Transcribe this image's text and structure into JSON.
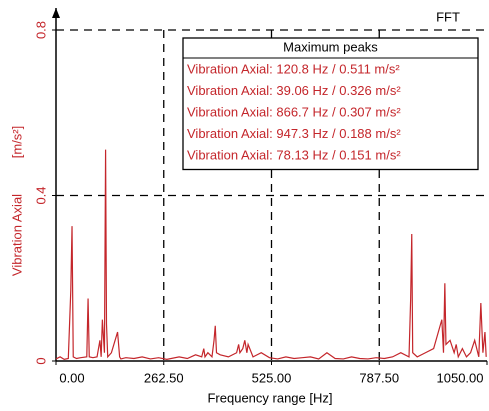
{
  "chart_data": {
    "type": "line",
    "title": "FFT",
    "x_label": "Frequency range [Hz]",
    "y_label": "Vibration Axial",
    "y_unit": "[m/s²]",
    "legend_title": "Maximum peaks",
    "legend_entries": [
      "Vibration Axial: 120.8 Hz / 0.511 m/s²",
      "Vibration Axial: 39.06 Hz / 0.326 m/s²",
      "Vibration Axial: 866.7 Hz / 0.307 m/s²",
      "Vibration Axial: 947.3 Hz / 0.188 m/s²",
      "Vibration Axial: 78.13 Hz / 0.151 m/s²"
    ],
    "color": "#c4262b",
    "grid": true,
    "xlim": [
      0,
      1050
    ],
    "ylim": [
      0,
      0.8
    ],
    "xticks": [
      {
        "value": 0,
        "label": "0.00"
      },
      {
        "value": 262.5,
        "label": "262.50"
      },
      {
        "value": 525,
        "label": "525.00"
      },
      {
        "value": 787.5,
        "label": "787.50"
      },
      {
        "value": 1050,
        "label": "1050.00"
      }
    ],
    "yticks": [
      0,
      0.4,
      0.8
    ],
    "x": [
      0,
      10,
      20,
      30,
      36,
      39.06,
      42,
      50,
      60,
      75,
      78.13,
      81,
      90,
      100,
      107,
      110,
      113,
      118,
      120.8,
      123,
      126,
      135,
      150,
      155,
      158,
      170,
      190,
      210,
      230,
      250,
      270,
      300,
      320,
      340,
      355,
      360,
      363,
      370,
      380,
      385,
      388,
      391,
      400,
      420,
      440,
      445,
      448,
      455,
      460,
      465,
      468,
      480,
      500,
      520,
      540,
      560,
      580,
      600,
      620,
      640,
      660,
      680,
      700,
      720,
      740,
      760,
      780,
      800,
      820,
      840,
      860,
      864,
      866.7,
      869,
      880,
      900,
      920,
      940,
      944,
      947.3,
      950,
      960,
      970,
      975,
      980,
      990,
      1000,
      1010,
      1020,
      1030,
      1035,
      1040,
      1045,
      1048
    ],
    "values": [
      0.005,
      0.01,
      0.004,
      0.006,
      0.17,
      0.326,
      0.01,
      0.006,
      0.008,
      0.01,
      0.151,
      0.01,
      0.008,
      0.01,
      0.05,
      0.01,
      0.1,
      0.02,
      0.511,
      0.09,
      0.01,
      0.02,
      0.07,
      0.01,
      0.005,
      0.008,
      0.006,
      0.01,
      0.005,
      0.008,
      0.004,
      0.01,
      0.006,
      0.015,
      0.01,
      0.03,
      0.01,
      0.02,
      0.01,
      0.05,
      0.085,
      0.02,
      0.015,
      0.01,
      0.02,
      0.04,
      0.02,
      0.03,
      0.05,
      0.02,
      0.04,
      0.01,
      0.02,
      0.008,
      0.005,
      0.01,
      0.006,
      0.008,
      0.01,
      0.005,
      0.02,
      0.006,
      0.005,
      0.01,
      0.006,
      0.005,
      0.008,
      0.006,
      0.01,
      0.02,
      0.01,
      0.15,
      0.307,
      0.02,
      0.01,
      0.02,
      0.03,
      0.1,
      0.02,
      0.188,
      0.04,
      0.05,
      0.02,
      0.04,
      0.01,
      0.03,
      0.01,
      0.02,
      0.05,
      0.01,
      0.14,
      0.02,
      0.07,
      0.01
    ]
  }
}
